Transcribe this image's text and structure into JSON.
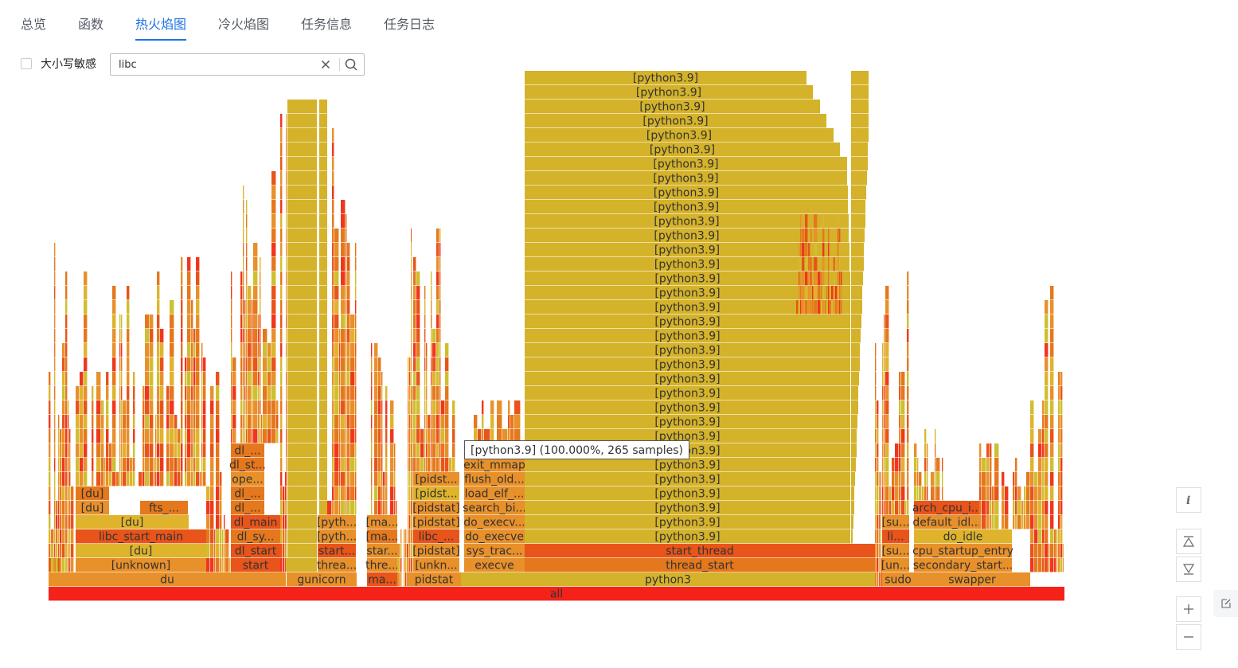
{
  "tabs": [
    {
      "label": "总览"
    },
    {
      "label": "函数"
    },
    {
      "label": "热火焰图"
    },
    {
      "label": "冷火焰图"
    },
    {
      "label": "任务信息"
    },
    {
      "label": "任务日志"
    }
  ],
  "active_tab": "热火焰图",
  "case_sensitive": {
    "label": "大小写敏感",
    "checked": false
  },
  "search": {
    "value": "libc"
  },
  "tooltip": {
    "text": "[python3.9] (100.000%, 265 samples)"
  },
  "flame": {
    "root": {
      "name": "all",
      "samples": 265
    },
    "frames_labeled": [
      "du",
      "[unknown]",
      "[du]",
      "libc_start_main",
      "[du]",
      "[du]",
      "fts_...",
      "[du]",
      "gunicorn",
      "start",
      "dl_start",
      "dl_sy...",
      "dl_main",
      "dl_...",
      "dl_...",
      "ope...",
      "dl_st...",
      "dl_...",
      "threa...",
      "start...",
      "[pyth...",
      "[pyth...",
      "ma...",
      "thre...",
      "star...",
      "[ma...",
      "[ma...",
      "pidstat",
      "[unkn...",
      "[pidstat]",
      "libc_...",
      "[pidstat]",
      "[pidstat]",
      "[pidst...",
      "[pidst...",
      "execve",
      "sys_trac...",
      "do_execve",
      "do_execv...",
      "search_bi...",
      "load_elf_...",
      "flush_old...",
      "exit_mmap",
      "python3",
      "thread_start",
      "start_thread",
      "[python3.9]",
      "sudo",
      "[un...",
      "[su...",
      "li...",
      "[su...",
      "swapper",
      "secondary_start...",
      "cpu_startup_entry",
      "do_idle",
      "default_idl...",
      "arch_cpu_i..."
    ]
  },
  "colors": {
    "root": "#f5221a",
    "python": "#d4b22a",
    "accent_tab": "#1e71e4"
  },
  "side_tools": {
    "info_icon": "info-icon",
    "collapse_icon": "collapse-top-icon",
    "expand_icon": "expand-bottom-icon",
    "zoom_in_icon": "plus-icon",
    "zoom_out_icon": "minus-icon",
    "edit_icon": "edit-icon"
  }
}
